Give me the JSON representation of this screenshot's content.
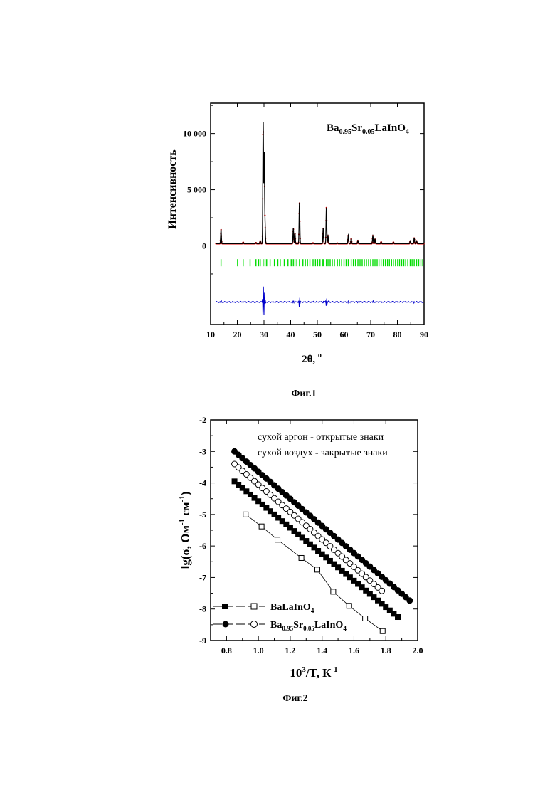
{
  "chart_data": [
    {
      "type": "line",
      "title": "Ba0.95Sr0.05LaInO4",
      "xlabel": "2θ, °",
      "ylabel": "Интенсивность",
      "xlim": [
        10,
        90
      ],
      "xticks": [
        10,
        20,
        30,
        40,
        50,
        60,
        70,
        80,
        90
      ],
      "yticks": [
        {
          "value": 0,
          "label": "0"
        },
        {
          "value": 5000,
          "label": "5 000"
        },
        {
          "value": 10000,
          "label": "10 000"
        }
      ],
      "ylim": [
        -7000,
        12700
      ],
      "baseline": 200,
      "peaks": [
        {
          "x": 13.9,
          "y": 1450
        },
        {
          "x": 22.2,
          "y": 320
        },
        {
          "x": 27.0,
          "y": 280
        },
        {
          "x": 28.6,
          "y": 450
        },
        {
          "x": 29.7,
          "y": 11050
        },
        {
          "x": 30.1,
          "y": 8200
        },
        {
          "x": 30.4,
          "y": 1800
        },
        {
          "x": 41.0,
          "y": 1550
        },
        {
          "x": 41.6,
          "y": 1150
        },
        {
          "x": 43.3,
          "y": 3850
        },
        {
          "x": 48.4,
          "y": 260
        },
        {
          "x": 52.2,
          "y": 1550
        },
        {
          "x": 53.4,
          "y": 3400
        },
        {
          "x": 54.0,
          "y": 900
        },
        {
          "x": 57.5,
          "y": 240
        },
        {
          "x": 61.6,
          "y": 950
        },
        {
          "x": 62.7,
          "y": 650
        },
        {
          "x": 65.2,
          "y": 480
        },
        {
          "x": 70.8,
          "y": 900
        },
        {
          "x": 71.6,
          "y": 600
        },
        {
          "x": 73.9,
          "y": 350
        },
        {
          "x": 78.5,
          "y": 330
        },
        {
          "x": 84.8,
          "y": 450
        },
        {
          "x": 86.3,
          "y": 700
        },
        {
          "x": 87.2,
          "y": 450
        }
      ],
      "bragg_y": -1500,
      "bragg_positions": [
        13.9,
        20.1,
        22.2,
        24.8,
        27.0,
        28.0,
        28.6,
        29.7,
        30.4,
        31.0,
        32.3,
        33.9,
        35.2,
        36.1,
        37.6,
        39.0,
        40.2,
        41.0,
        41.6,
        42.3,
        43.3,
        44.6,
        45.5,
        46.3,
        47.2,
        48.4,
        49.3,
        50.1,
        51.0,
        51.8,
        52.2,
        53.4,
        54.0,
        54.8,
        55.6,
        56.4,
        57.5,
        58.3,
        59.1,
        60.0,
        60.8,
        61.6,
        62.7,
        63.5,
        64.3,
        65.2,
        66.0,
        66.8,
        67.6,
        68.4,
        69.2,
        70.0,
        70.8,
        71.6,
        72.4,
        73.1,
        73.9,
        74.7,
        75.5,
        76.3,
        77.0,
        77.8,
        78.5,
        79.3,
        80.1,
        80.8,
        81.6,
        82.4,
        83.1,
        83.9,
        84.8,
        85.5,
        86.3,
        87.2,
        88.0,
        88.8,
        89.5
      ],
      "difference_y": -5000,
      "colors": {
        "observed": "#e00000",
        "calculated": "#000000",
        "bragg": "#00dd00",
        "difference": "#0000cc"
      },
      "caption": "Фиг.1"
    },
    {
      "type": "scatter",
      "xlabel": "10³/T, К⁻¹",
      "ylabel": "lg(σ, Ом⁻¹ см⁻¹)",
      "xlim": [
        0.7,
        2.0
      ],
      "ylim": [
        -9,
        -2
      ],
      "xticks": [
        0.8,
        1.0,
        1.2,
        1.4,
        1.6,
        1.8,
        2.0
      ],
      "yticks": [
        -9,
        -8,
        -7,
        -6,
        -5,
        -4,
        -3,
        -2
      ],
      "annotations": [
        "сухой аргон - открытые знаки",
        "сухой воздух - закрытые знаки"
      ],
      "legend": [
        "BaLaInO4",
        "Ba0.95Sr0.05LaInO4"
      ],
      "series": [
        {
          "name": "BaLaInO4",
          "marker": "square",
          "filled": true,
          "x_start": 0.85,
          "x_step": 0.025,
          "count": 42,
          "y_start": -3.95,
          "slope": -4.2
        },
        {
          "name": "BaLaInO4",
          "marker": "square",
          "filled": false,
          "x": [
            0.92,
            1.02,
            1.12,
            1.27,
            1.37,
            1.47,
            1.57,
            1.67,
            1.78
          ],
          "y": [
            -5.0,
            -5.38,
            -5.8,
            -6.38,
            -6.75,
            -7.45,
            -7.9,
            -8.3,
            -8.7
          ]
        },
        {
          "name": "Ba0.95Sr0.05LaInO4",
          "marker": "circle",
          "filled": true,
          "x_start": 0.85,
          "x_step": 0.025,
          "count": 45,
          "y_start": -3.0,
          "slope": -4.3
        },
        {
          "name": "Ba0.95Sr0.05LaInO4",
          "marker": "circle",
          "filled": false,
          "x_start": 0.85,
          "x_step": 0.025,
          "count": 38,
          "y_start": -3.4,
          "slope": -4.35
        }
      ],
      "caption": "Фиг.2"
    }
  ]
}
